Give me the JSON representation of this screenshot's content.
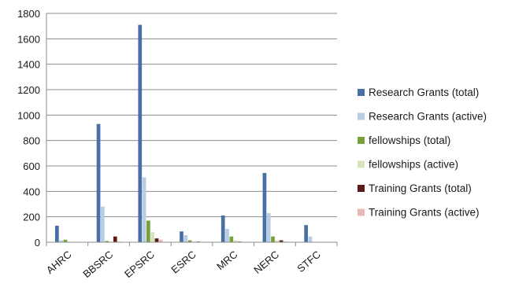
{
  "chart_data": {
    "type": "bar",
    "categories": [
      "AHRC",
      "BBSRC",
      "EPSRC",
      "ESRC",
      "MRC",
      "NERC",
      "STFC"
    ],
    "series": [
      {
        "name": "Research Grants (total)",
        "color": "#4a6fa5",
        "values": [
          130,
          930,
          1710,
          85,
          210,
          545,
          135
        ]
      },
      {
        "name": "Research Grants (active)",
        "color": "#b8cce4",
        "values": [
          15,
          280,
          510,
          55,
          105,
          230,
          45
        ]
      },
      {
        "name": "fellowships (total)",
        "color": "#77a03a",
        "values": [
          20,
          10,
          170,
          15,
          45,
          45,
          0
        ]
      },
      {
        "name": "fellowships (active)",
        "color": "#d7e4bd",
        "values": [
          5,
          5,
          80,
          5,
          15,
          15,
          0
        ]
      },
      {
        "name": "Training Grants (total)",
        "color": "#5c1a1a",
        "values": [
          0,
          45,
          30,
          5,
          5,
          15,
          0
        ]
      },
      {
        "name": "Training Grants (active)",
        "color": "#e6b9b8",
        "values": [
          0,
          5,
          20,
          0,
          0,
          5,
          0
        ]
      }
    ],
    "ylim": [
      0,
      1800
    ],
    "yticks": [
      0,
      200,
      400,
      600,
      800,
      1000,
      1200,
      1400,
      1600,
      1800
    ],
    "grid": true,
    "legend_position": "right"
  }
}
